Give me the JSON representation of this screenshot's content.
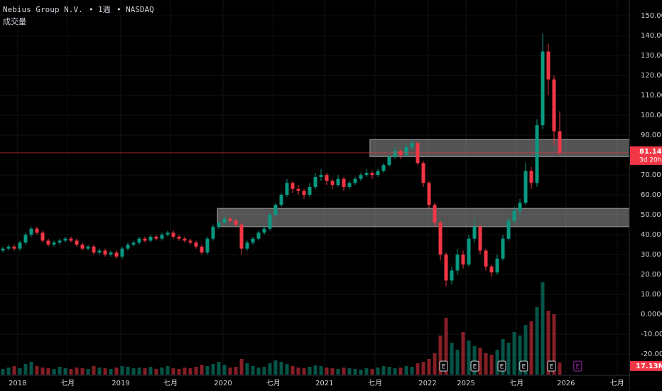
{
  "chart_data": {
    "type": "candlestick",
    "symbol": "Nebius Group N.V.",
    "interval": "1週",
    "exchange": "NASDAQ",
    "indicator": "成交量",
    "ylim": [
      -31.4,
      157.9
    ],
    "yticks": [
      {
        "value": 150,
        "label": "150.00"
      },
      {
        "value": 140,
        "label": "140.00"
      },
      {
        "value": 130,
        "label": "130.00"
      },
      {
        "value": 120,
        "label": "120.00"
      },
      {
        "value": 110,
        "label": "110.00"
      },
      {
        "value": 100,
        "label": "100.00"
      },
      {
        "value": 90,
        "label": "90.00"
      },
      {
        "value": 70,
        "label": "70.00"
      },
      {
        "value": 60,
        "label": "60.00"
      },
      {
        "value": 50,
        "label": "50.00"
      },
      {
        "value": 40,
        "label": "40.00"
      },
      {
        "value": 30,
        "label": "30.00"
      },
      {
        "value": 20,
        "label": "20.00"
      },
      {
        "value": 10,
        "label": "10.00"
      },
      {
        "value": 0,
        "label": "0.0000"
      },
      {
        "value": -10,
        "label": "-10.00"
      },
      {
        "value": -20,
        "label": "-20.00"
      }
    ],
    "time_labels": [
      {
        "at": 2.6,
        "label": "2018"
      },
      {
        "at": 11.4,
        "label": "七月"
      },
      {
        "at": 20.75,
        "label": "2019"
      },
      {
        "at": 29.5,
        "label": "七月"
      },
      {
        "at": 38.75,
        "label": "2020"
      },
      {
        "at": 47.6,
        "label": "七月"
      },
      {
        "at": 56.6,
        "label": "2021"
      },
      {
        "at": 65.5,
        "label": "七月"
      },
      {
        "at": 74.75,
        "label": "2022"
      },
      {
        "at": 81.5,
        "label": "2025"
      },
      {
        "at": 90.4,
        "label": "七月"
      },
      {
        "at": 99.1,
        "label": "2026"
      },
      {
        "at": 108.1,
        "label": "七月"
      }
    ],
    "candles": [
      [
        32,
        34,
        31,
        33
      ],
      [
        33,
        35,
        32,
        34
      ],
      [
        34,
        35,
        32,
        33
      ],
      [
        33,
        37,
        32,
        36
      ],
      [
        36,
        41,
        35,
        40
      ],
      [
        40,
        44,
        39,
        43
      ],
      [
        43,
        44,
        40,
        41
      ],
      [
        41,
        42,
        36,
        37
      ],
      [
        37,
        38,
        34,
        35
      ],
      [
        35,
        37,
        34,
        36
      ],
      [
        36,
        38,
        35,
        37
      ],
      [
        37,
        39,
        36,
        38
      ],
      [
        38,
        39,
        36,
        37
      ],
      [
        37,
        38,
        34,
        35
      ],
      [
        35,
        36,
        32,
        33
      ],
      [
        33,
        35,
        32,
        34
      ],
      [
        34,
        35,
        30,
        31
      ],
      [
        31,
        33,
        30,
        32
      ],
      [
        32,
        33,
        29,
        30
      ],
      [
        30,
        32,
        29,
        31
      ],
      [
        31,
        32,
        28,
        29
      ],
      [
        29,
        34,
        28,
        33
      ],
      [
        33,
        36,
        32,
        35
      ],
      [
        35,
        37,
        34,
        36
      ],
      [
        36,
        39,
        35,
        38
      ],
      [
        38,
        39,
        36,
        37
      ],
      [
        37,
        40,
        36,
        39
      ],
      [
        39,
        40,
        37,
        38
      ],
      [
        38,
        41,
        37,
        40
      ],
      [
        40,
        42,
        39,
        41
      ],
      [
        41,
        42,
        38,
        39
      ],
      [
        39,
        40,
        37,
        38
      ],
      [
        38,
        39,
        36,
        37
      ],
      [
        37,
        38,
        35,
        36
      ],
      [
        36,
        37,
        33,
        34
      ],
      [
        34,
        35,
        30,
        31
      ],
      [
        31,
        39,
        30,
        38
      ],
      [
        38,
        45,
        37,
        44
      ],
      [
        44,
        47,
        43,
        46
      ],
      [
        46,
        49,
        45,
        48
      ],
      [
        48,
        49,
        46,
        47
      ],
      [
        47,
        48,
        44,
        45
      ],
      [
        45,
        46,
        30,
        33
      ],
      [
        33,
        37,
        32,
        36
      ],
      [
        36,
        39,
        35,
        38
      ],
      [
        38,
        42,
        37,
        41
      ],
      [
        41,
        44,
        40,
        43
      ],
      [
        43,
        51,
        42,
        50
      ],
      [
        50,
        56,
        49,
        55
      ],
      [
        55,
        61,
        54,
        60
      ],
      [
        60,
        68,
        59,
        66
      ],
      [
        66,
        67,
        61,
        63
      ],
      [
        63,
        65,
        60,
        62
      ],
      [
        62,
        63,
        58,
        60
      ],
      [
        60,
        66,
        59,
        64
      ],
      [
        64,
        71,
        63,
        69
      ],
      [
        69,
        73,
        67,
        70
      ],
      [
        70,
        71,
        65,
        67
      ],
      [
        67,
        68,
        63,
        65
      ],
      [
        65,
        70,
        64,
        68
      ],
      [
        68,
        69,
        62,
        64
      ],
      [
        64,
        67,
        63,
        66
      ],
      [
        66,
        69,
        65,
        68
      ],
      [
        68,
        71,
        67,
        70
      ],
      [
        70,
        73,
        69,
        71
      ],
      [
        71,
        72,
        68,
        70
      ],
      [
        70,
        73,
        69,
        72
      ],
      [
        72,
        76,
        71,
        75
      ],
      [
        75,
        80,
        74,
        79
      ],
      [
        79,
        84,
        78,
        82
      ],
      [
        82,
        83,
        78,
        80
      ],
      [
        80,
        86,
        79,
        84
      ],
      [
        84,
        88,
        83,
        86
      ],
      [
        86,
        87,
        75,
        76
      ],
      [
        76,
        77,
        64,
        66
      ],
      [
        66,
        67,
        53,
        55
      ],
      [
        55,
        56,
        44,
        46
      ],
      [
        46,
        47,
        27,
        30
      ],
      [
        30,
        31,
        14,
        17
      ],
      [
        17,
        24,
        15,
        22
      ],
      [
        22,
        33,
        20,
        30
      ],
      [
        30,
        32,
        23,
        25
      ],
      [
        25,
        40,
        24,
        38
      ],
      [
        38,
        48,
        36,
        44
      ],
      [
        44,
        45,
        30,
        32
      ],
      [
        32,
        33,
        22,
        24
      ],
      [
        24,
        25,
        19,
        21
      ],
      [
        21,
        30,
        20,
        28
      ],
      [
        28,
        40,
        27,
        38
      ],
      [
        38,
        49,
        37,
        47
      ],
      [
        47,
        54,
        45,
        52
      ],
      [
        52,
        58,
        50,
        56
      ],
      [
        56,
        76,
        55,
        72
      ],
      [
        72,
        74,
        63,
        66
      ],
      [
        66,
        98,
        64,
        95
      ],
      [
        95,
        141,
        93,
        132
      ],
      [
        132,
        136,
        110,
        118
      ],
      [
        118,
        120,
        85,
        92
      ],
      [
        92,
        102,
        80,
        81.14
      ]
    ],
    "volume": {
      "values": [
        8,
        10,
        12,
        9,
        15,
        18,
        12,
        10,
        9,
        8,
        11,
        9,
        8,
        10,
        9,
        8,
        12,
        10,
        9,
        8,
        10,
        12,
        11,
        9,
        10,
        9,
        11,
        8,
        10,
        12,
        9,
        8,
        10,
        9,
        11,
        14,
        12,
        15,
        18,
        14,
        10,
        11,
        22,
        16,
        12,
        10,
        11,
        16,
        20,
        18,
        15,
        12,
        10,
        9,
        11,
        13,
        12,
        10,
        9,
        8,
        10,
        9,
        8,
        7,
        9,
        8,
        10,
        12,
        11,
        9,
        10,
        12,
        11,
        16,
        18,
        22,
        30,
        55,
        80,
        45,
        35,
        60,
        48,
        40,
        38,
        30,
        28,
        35,
        50,
        45,
        60,
        55,
        70,
        75,
        95,
        130,
        90,
        85,
        17.13
      ],
      "last_label": "17.13M"
    },
    "last_price": {
      "value": 81.14,
      "label": "81.14",
      "countdown": "3d 20h"
    },
    "zones": [
      {
        "start": 64.6,
        "top": 87.8,
        "bottom": 79.2
      },
      {
        "start": 37.75,
        "top": 53.2,
        "bottom": 44.0
      }
    ],
    "earnings": [
      {
        "at": 77.5,
        "label": "E",
        "color": "#d1d4dc"
      },
      {
        "at": 83,
        "label": "E",
        "color": "#d1d4dc"
      },
      {
        "at": 87.75,
        "label": "E",
        "color": "#d1d4dc"
      },
      {
        "at": 91.6,
        "label": "E",
        "color": "#d1d4dc"
      },
      {
        "at": 96.5,
        "label": "E",
        "color": "#d1d4dc"
      },
      {
        "at": 101.1,
        "label": "E",
        "color": "#9c27b0"
      }
    ],
    "up_color": "#089981",
    "down_color": "#f23645",
    "grid": true
  }
}
